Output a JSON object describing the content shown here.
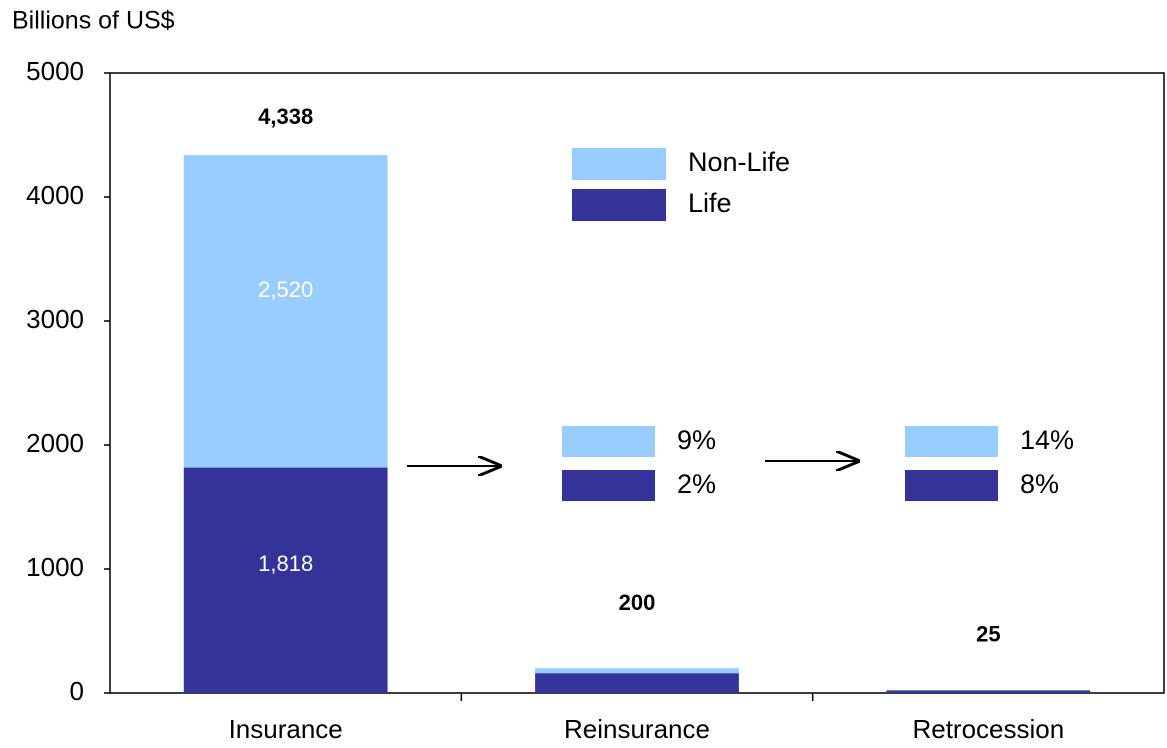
{
  "chart_data": {
    "type": "stacked_bar",
    "axis_title": "Billions of US$",
    "categories": [
      "Insurance",
      "Reinsurance",
      "Retrocession"
    ],
    "series": [
      {
        "name": "Life",
        "color": "#333399",
        "values": [
          1818,
          160,
          20
        ],
        "value_labels": [
          "1,818",
          null,
          null
        ],
        "ratio_labels": [
          null,
          "2%",
          "8%"
        ]
      },
      {
        "name": "Non-Life",
        "color": "#99ccff",
        "values": [
          2520,
          40,
          5
        ],
        "value_labels": [
          "2,520",
          null,
          null
        ],
        "ratio_labels": [
          null,
          "9%",
          "14%"
        ]
      }
    ],
    "totals": [
      4338,
      200,
      25
    ],
    "total_labels": [
      "4,338",
      "200",
      "25"
    ],
    "ylim": [
      0,
      5000
    ],
    "yticks": [
      0,
      1000,
      2000,
      3000,
      4000,
      5000
    ]
  }
}
